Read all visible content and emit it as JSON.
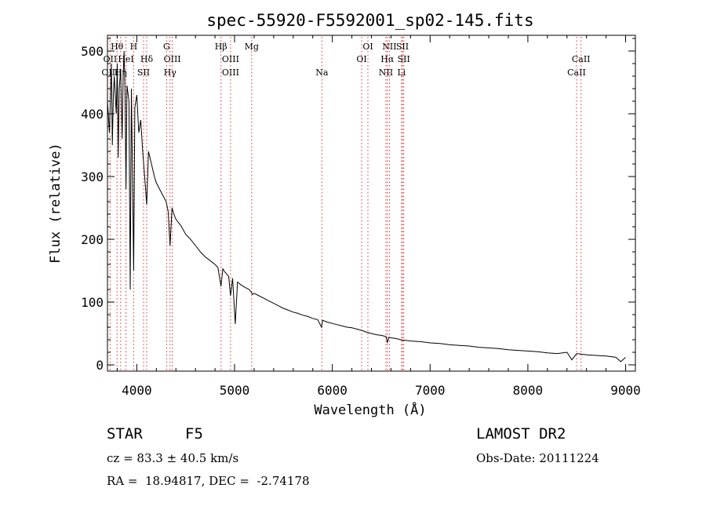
{
  "chart_data": {
    "type": "line",
    "title": "spec-55920-F5592001_sp02-145.fits",
    "xlabel": "Wavelength (Å)",
    "ylabel": "Flux (relative)",
    "xlim": [
      3700,
      9100
    ],
    "ylim": [
      -10,
      525
    ],
    "xticks": [
      4000,
      5000,
      6000,
      7000,
      8000,
      9000
    ],
    "yticks": [
      0,
      100,
      200,
      300,
      400,
      500
    ],
    "grid": false,
    "series": [
      {
        "color": "#000000",
        "x": [
          3700,
          3720,
          3740,
          3750,
          3760,
          3770,
          3790,
          3800,
          3810,
          3820,
          3835,
          3850,
          3860,
          3870,
          3880,
          3889,
          3900,
          3920,
          3933,
          3945,
          3955,
          3968,
          3980,
          4000,
          4020,
          4040,
          4060,
          4080,
          4101,
          4120,
          4150,
          4180,
          4200,
          4250,
          4300,
          4320,
          4340,
          4360,
          4380,
          4400,
          4450,
          4500,
          4550,
          4600,
          4650,
          4700,
          4750,
          4800,
          4830,
          4861,
          4880,
          4900,
          4940,
          4959,
          4980,
          5007,
          5030,
          5060,
          5100,
          5150,
          5170,
          5183,
          5200,
          5250,
          5300,
          5350,
          5400,
          5450,
          5500,
          5550,
          5600,
          5650,
          5700,
          5750,
          5800,
          5850,
          5890,
          5900,
          5950,
          6000,
          6050,
          6100,
          6150,
          6200,
          6250,
          6300,
          6350,
          6400,
          6450,
          6500,
          6550,
          6563,
          6580,
          6600,
          6650,
          6700,
          6800,
          6900,
          7000,
          7100,
          7200,
          7300,
          7400,
          7500,
          7600,
          7700,
          7800,
          7900,
          8000,
          8100,
          8200,
          8300,
          8400,
          8450,
          8500,
          8550,
          8600,
          8700,
          8800,
          8900,
          8950,
          9000
        ],
        "y": [
          420,
          370,
          480,
          350,
          430,
          460,
          400,
          480,
          330,
          440,
          470,
          360,
          455,
          500,
          430,
          280,
          445,
          420,
          120,
          440,
          310,
          150,
          410,
          430,
          370,
          390,
          340,
          300,
          255,
          340,
          320,
          300,
          290,
          275,
          260,
          245,
          190,
          250,
          240,
          232,
          222,
          208,
          200,
          190,
          180,
          172,
          166,
          160,
          155,
          125,
          153,
          148,
          141,
          110,
          138,
          65,
          132,
          128,
          124,
          120,
          116,
          112,
          114,
          110,
          106,
          102,
          98,
          94,
          90,
          87,
          84,
          82,
          79,
          77,
          74,
          72,
          60,
          71,
          68,
          66,
          64,
          62,
          60,
          59,
          57,
          55,
          52,
          50,
          48,
          47,
          45,
          36,
          44,
          43,
          42,
          40,
          38,
          37,
          35,
          34,
          32,
          31,
          30,
          28,
          27,
          26,
          24,
          23,
          22,
          21,
          19,
          18,
          20,
          8,
          18,
          17,
          16,
          15,
          14,
          12,
          5,
          12
        ]
      }
    ],
    "lines": [
      {
        "label": "Hθ",
        "x": 3798,
        "row": 1
      },
      {
        "label": "OII",
        "x": 3727,
        "row": 2
      },
      {
        "label": "OIII",
        "x": 3727,
        "row": 3
      },
      {
        "label": "H",
        "x": 3968,
        "row": 1
      },
      {
        "label": "HeI",
        "x": 3889,
        "row": 2
      },
      {
        "label": "Hη",
        "x": 3835,
        "row": 3
      },
      {
        "label": "Hδ",
        "x": 4101,
        "row": 2
      },
      {
        "label": "SII",
        "x": 4069,
        "row": 3
      },
      {
        "label": "G",
        "x": 4305,
        "row": 1
      },
      {
        "label": "OIII",
        "x": 4363,
        "row": 2
      },
      {
        "label": "Hγ",
        "x": 4340,
        "row": 3
      },
      {
        "label": "Hβ",
        "x": 4861,
        "row": 1
      },
      {
        "label": "OIII",
        "x": 4959,
        "row": 2
      },
      {
        "label": "OIII",
        "x": 4959,
        "row": 3
      },
      {
        "label": "Mg",
        "x": 5175,
        "row": 1
      },
      {
        "label": "Na",
        "x": 5893,
        "row": 3
      },
      {
        "label": "OI",
        "x": 6364,
        "row": 1
      },
      {
        "label": "OI",
        "x": 6300,
        "row": 2
      },
      {
        "label": "NII",
        "x": 6584,
        "row": 1
      },
      {
        "label": "SII",
        "x": 6717,
        "row": 1
      },
      {
        "label": "Hα",
        "x": 6563,
        "row": 2
      },
      {
        "label": "SII",
        "x": 6731,
        "row": 2
      },
      {
        "label": "NII",
        "x": 6548,
        "row": 3
      },
      {
        "label": "Li",
        "x": 6708,
        "row": 3
      },
      {
        "label": "CaII",
        "x": 8544,
        "row": 2
      },
      {
        "label": "CaII",
        "x": 8498,
        "row": 3
      }
    ]
  },
  "info": {
    "class_label": "STAR",
    "subclass": "F5",
    "survey": "LAMOST DR2",
    "redshift": "cz = 83.3 ± 40.5 km/s",
    "obs_date": "Obs-Date: 20111224",
    "coords": "RA =  18.94817, DEC =  -2.74178"
  }
}
